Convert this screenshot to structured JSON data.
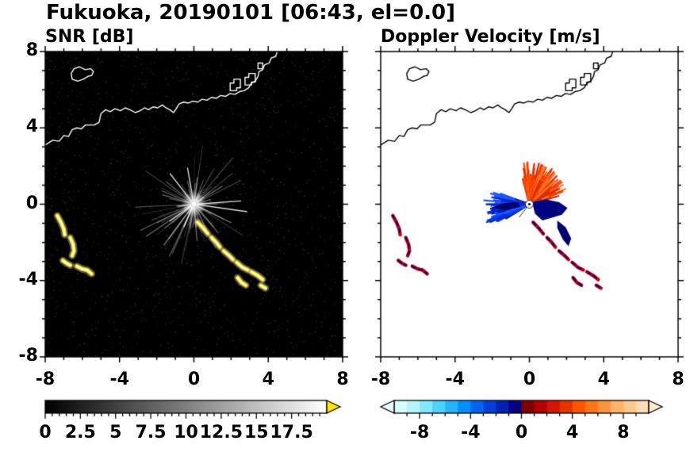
{
  "title": "Fukuoka, 20190101 [06:43, el=0.0]",
  "panels": {
    "snr": {
      "title": "SNR [dB]"
    },
    "doppler": {
      "title": "Doppler Velocity [m/s]"
    }
  },
  "chart_data": {
    "type": "heatmap",
    "subtype": "dual-panel radar PPI",
    "station": "Fukuoka",
    "date": "20190101",
    "time": "06:43",
    "elevation": 0.0,
    "axis": {
      "xlim": [
        -8,
        8
      ],
      "ylim": [
        -8,
        8
      ],
      "x_ticks": [
        -8,
        -4,
        0,
        4,
        8
      ],
      "x_tick_labels": [
        "-8",
        "-4",
        "0",
        "4",
        "8"
      ],
      "y_ticks": [
        8,
        4,
        0,
        -4,
        -8
      ],
      "y_tick_labels": [
        "8",
        "4",
        "0",
        "-4",
        "-8"
      ],
      "minor_step": 1
    },
    "snr_colorbar": {
      "range": [
        0,
        20
      ],
      "ticks": [
        0,
        2.5,
        5,
        7.5,
        10,
        12.5,
        15,
        17.5
      ],
      "labels": [
        "0",
        "2.5",
        "5",
        "7.5",
        "10",
        "12.5",
        "15",
        "17.5"
      ],
      "minor_step": 0.5,
      "gradient": [
        "#000000",
        "#ffffff"
      ],
      "over_arrow_color": "#ffe600"
    },
    "doppler_colorbar": {
      "range": [
        -10,
        10
      ],
      "ticks": [
        -8,
        -4,
        0,
        4,
        8
      ],
      "labels": [
        "-8",
        "-4",
        "0",
        "4",
        "8"
      ],
      "minor_step": 1,
      "colors": [
        "#d9ffff",
        "#b3f5ff",
        "#80e8ff",
        "#4dd2ff",
        "#26b3ff",
        "#0091ff",
        "#0066f2",
        "#0041d9",
        "#0022b3",
        "#000080",
        "#800000",
        "#b30000",
        "#d41500",
        "#e63300",
        "#ff5500",
        "#ff7519",
        "#ff9440",
        "#ffb366",
        "#ffc98c",
        "#ffdcb3"
      ],
      "under_arrow_color": "#e8ffff",
      "over_arrow_color": "#ffeecc"
    },
    "coastline": {
      "main": [
        [
          -8,
          3.1
        ],
        [
          -7.6,
          3.35
        ],
        [
          -7.25,
          3.3
        ],
        [
          -7.0,
          3.6
        ],
        [
          -6.75,
          3.55
        ],
        [
          -6.55,
          3.9
        ],
        [
          -6.3,
          4.0
        ],
        [
          -6.05,
          3.95
        ],
        [
          -5.85,
          4.15
        ],
        [
          -5.35,
          4.15
        ],
        [
          -5.1,
          4.3
        ],
        [
          -5.0,
          4.75
        ],
        [
          -4.75,
          4.95
        ],
        [
          -4.5,
          4.85
        ],
        [
          -4.25,
          5.0
        ],
        [
          -3.95,
          4.9
        ],
        [
          -3.7,
          5.05
        ],
        [
          -3.45,
          4.95
        ],
        [
          -3.15,
          4.8
        ],
        [
          -2.9,
          4.9
        ],
        [
          -2.65,
          5.05
        ],
        [
          -2.45,
          4.95
        ],
        [
          -2.2,
          5.1
        ],
        [
          -1.95,
          5.05
        ],
        [
          -1.7,
          5.2
        ],
        [
          -1.5,
          5.05
        ],
        [
          -1.3,
          4.95
        ],
        [
          -1.1,
          4.8
        ],
        [
          -0.95,
          5.0
        ],
        [
          -0.8,
          5.25
        ],
        [
          -0.55,
          5.35
        ],
        [
          -0.3,
          5.3
        ],
        [
          -0.05,
          5.4
        ],
        [
          0.2,
          5.35
        ],
        [
          0.45,
          5.5
        ],
        [
          0.7,
          5.45
        ],
        [
          0.95,
          5.6
        ],
        [
          1.2,
          5.55
        ],
        [
          1.45,
          5.7
        ],
        [
          1.7,
          5.65
        ],
        [
          1.95,
          5.8
        ],
        [
          2.2,
          5.75
        ],
        [
          2.45,
          5.9
        ],
        [
          2.7,
          5.95
        ],
        [
          2.95,
          6.1
        ],
        [
          3.1,
          6.35
        ],
        [
          3.3,
          6.45
        ],
        [
          3.45,
          6.7
        ],
        [
          3.5,
          6.95
        ],
        [
          3.7,
          7.05
        ],
        [
          3.8,
          7.3
        ],
        [
          4.05,
          7.4
        ],
        [
          4.15,
          7.65
        ],
        [
          4.4,
          7.75
        ],
        [
          4.5,
          8.05
        ]
      ],
      "island": [
        [
          -6.55,
          6.55
        ],
        [
          -6.25,
          6.45
        ],
        [
          -5.95,
          6.55
        ],
        [
          -5.7,
          6.7
        ],
        [
          -5.5,
          6.75
        ],
        [
          -5.4,
          6.95
        ],
        [
          -5.55,
          7.1
        ],
        [
          -5.85,
          7.05
        ],
        [
          -6.15,
          7.2
        ],
        [
          -6.45,
          7.1
        ],
        [
          -6.6,
          6.85
        ]
      ],
      "ports": [
        [
          [
            1.95,
            5.95
          ],
          [
            1.95,
            6.35
          ],
          [
            2.15,
            6.35
          ],
          [
            2.15,
            6.55
          ],
          [
            2.5,
            6.55
          ],
          [
            2.5,
            6.1
          ],
          [
            2.3,
            6.1
          ],
          [
            2.3,
            5.95
          ]
        ],
        [
          [
            2.75,
            6.25
          ],
          [
            2.75,
            6.65
          ],
          [
            2.95,
            6.65
          ],
          [
            2.95,
            6.85
          ],
          [
            3.3,
            6.85
          ],
          [
            3.3,
            6.4
          ],
          [
            3.1,
            6.4
          ],
          [
            3.1,
            6.25
          ]
        ],
        [
          [
            3.45,
            7.1
          ],
          [
            3.45,
            7.4
          ],
          [
            3.7,
            7.4
          ],
          [
            3.7,
            7.1
          ]
        ]
      ]
    },
    "clutter_arcs": [
      [
        [
          -7.35,
          -0.6
        ],
        [
          -7.15,
          -0.95
        ],
        [
          -7.0,
          -1.3
        ],
        [
          -6.95,
          -1.6
        ]
      ],
      [
        [
          -6.65,
          -1.75
        ],
        [
          -6.5,
          -2.1
        ],
        [
          -6.45,
          -2.45
        ],
        [
          -6.55,
          -2.7
        ]
      ],
      [
        [
          -7.05,
          -2.95
        ],
        [
          -6.85,
          -3.1
        ],
        [
          -6.65,
          -3.2
        ]
      ],
      [
        [
          -6.3,
          -3.25
        ],
        [
          -6.0,
          -3.4
        ],
        [
          -5.75,
          -3.45
        ],
        [
          -5.5,
          -3.65
        ]
      ],
      [
        [
          0.2,
          -0.95
        ],
        [
          0.5,
          -1.25
        ],
        [
          0.75,
          -1.55
        ]
      ],
      [
        [
          0.95,
          -1.75
        ],
        [
          1.2,
          -2.0
        ],
        [
          1.4,
          -2.25
        ]
      ],
      [
        [
          1.6,
          -2.45
        ],
        [
          1.9,
          -2.7
        ],
        [
          2.1,
          -2.9
        ]
      ],
      [
        [
          2.3,
          -3.05
        ],
        [
          2.6,
          -3.3
        ],
        [
          2.9,
          -3.45
        ]
      ],
      [
        [
          3.1,
          -3.55
        ],
        [
          3.45,
          -3.75
        ],
        [
          3.7,
          -3.95
        ]
      ],
      [
        [
          2.35,
          -3.85
        ],
        [
          2.55,
          -4.1
        ],
        [
          2.8,
          -4.25
        ]
      ],
      [
        [
          3.6,
          -4.25
        ],
        [
          3.85,
          -4.4
        ]
      ]
    ],
    "snr": {
      "background": "#000000",
      "clutter_color": "#ffe600",
      "noise": {
        "n": 1600,
        "alpha": [
          0.04,
          0.22
        ],
        "seed": 13
      },
      "streaks": {
        "n": 120,
        "rmax": 3.3,
        "alpha": [
          0.07,
          0.45
        ],
        "seed": 7
      },
      "rays": [
        {
          "a": -8,
          "r": 2.9
        },
        {
          "a": 4,
          "r": 2.55
        },
        {
          "a": 100,
          "r": 2.0
        },
        {
          "a": 128,
          "r": 2.1
        },
        {
          "a": 215,
          "r": 1.6
        },
        {
          "a": 246,
          "r": 1.35
        }
      ]
    },
    "doppler": {
      "background": "#ffffff",
      "clutter_primary": "#d40000",
      "clutter_secondary": "#000080",
      "fans": [
        {
          "name": "outbound-orange",
          "a0": 15,
          "a1": 105,
          "rmin": 0.12,
          "rmax": 2.3,
          "n": 260,
          "width": 2.2,
          "seed": 11,
          "colors": [
            "#ff5500",
            "#f03800",
            "#e63000",
            "#ff7733",
            "#d42a00",
            "#ff4400"
          ]
        },
        {
          "name": "inbound-blue",
          "a0": 160,
          "a1": 212,
          "rmin": 0.12,
          "rmax": 2.55,
          "n": 160,
          "width": 2.2,
          "seed": 21,
          "colors": [
            "#0040ff",
            "#0028d4",
            "#0018a0",
            "#2255ff",
            "#0033cc"
          ]
        }
      ],
      "blobs": [
        {
          "color": "#000080",
          "pts": [
            [
              0.15,
              0.1
            ],
            [
              0.9,
              0.25
            ],
            [
              1.6,
              0.1
            ],
            [
              2.05,
              -0.2
            ],
            [
              1.75,
              -0.55
            ],
            [
              1.25,
              -0.7
            ],
            [
              0.7,
              -0.85
            ],
            [
              0.3,
              -0.5
            ]
          ]
        },
        {
          "color": "#000070",
          "pts": [
            [
              1.5,
              -0.85
            ],
            [
              1.95,
              -1.2
            ],
            [
              2.25,
              -1.8
            ],
            [
              2.1,
              -2.2
            ],
            [
              1.8,
              -1.85
            ],
            [
              1.5,
              -1.25
            ]
          ]
        },
        {
          "color": "#00006a",
          "pts": [
            [
              -0.5,
              -0.15
            ],
            [
              -1.3,
              -0.3
            ],
            [
              -2.1,
              -0.2
            ],
            [
              -1.4,
              0.05
            ],
            [
              -0.6,
              0.1
            ]
          ]
        }
      ],
      "dark_rays": [
        {
          "a": 232,
          "r": 0.9
        }
      ]
    }
  }
}
